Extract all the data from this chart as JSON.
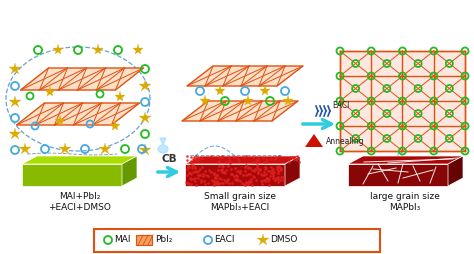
{
  "bg_color": "#ffffff",
  "legend_items": [
    "MAI",
    "PbI₂",
    "EACl",
    "DMSO"
  ],
  "legend_border_color": "#e05010",
  "labels_col1_line1": "MAI+PbI₂",
  "labels_col1_line2": "+EACl+DMSO",
  "labels_col2_line1": "Small grain size",
  "labels_col2_line2": "MAPbI₃+EACl",
  "labels_col3_line1": "large grain size",
  "labels_col3_line2": "MAPbI₃",
  "arrow_color": "#30ccdd",
  "cb_label": "CB",
  "annealing_label": "Annealing",
  "eacl_label": "EACl",
  "pbi2_color": "#e05010",
  "pbi2_fill": "#fce0c8",
  "mai_color": "#22bb22",
  "eacl_color": "#44aadd",
  "dmso_color": "#ddaa00",
  "film1_top": "#aadd00",
  "film1_front": "#88bb00",
  "film1_side": "#669900",
  "film2_top": "#cc1010",
  "film2_front": "#aa0808",
  "film2_side": "#880606",
  "film3_top": "#aa0808",
  "film3_front": "#880606",
  "film3_side": "#660404",
  "grid_bg": "#fce8e0",
  "grid_color": "#e05010",
  "dot_color": "#dd2020",
  "wb_color": "#ffffff"
}
